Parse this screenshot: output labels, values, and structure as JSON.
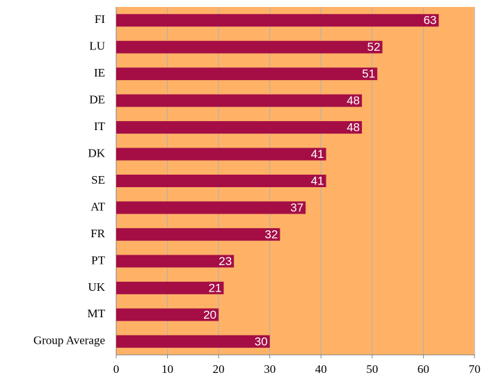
{
  "chart_data": {
    "type": "bar",
    "categories": [
      "FI",
      "LU",
      "IE",
      "DE",
      "IT",
      "DK",
      "SE",
      "AT",
      "FR",
      "PT",
      "UK",
      "MT",
      "Group Average"
    ],
    "values": [
      63,
      52,
      51,
      48,
      48,
      41,
      41,
      37,
      32,
      23,
      21,
      20,
      30
    ],
    "color": "#a50d45",
    "background": "#ffb266",
    "xlim": [
      0,
      70
    ],
    "xticks": [
      0,
      10,
      20,
      30,
      40,
      50,
      60,
      70
    ],
    "grid": true
  }
}
